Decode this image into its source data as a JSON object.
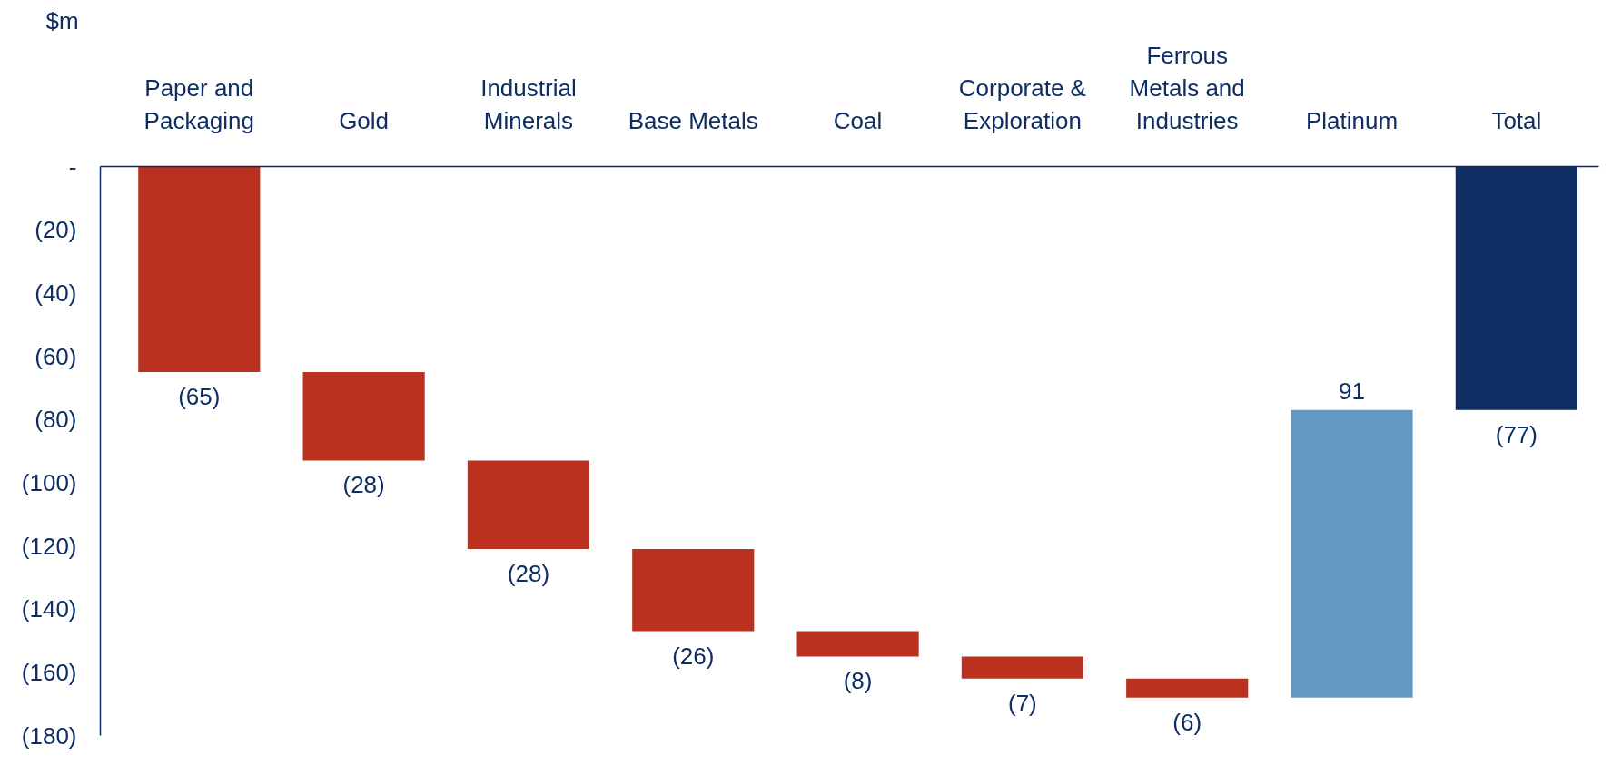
{
  "chart_data": {
    "type": "bar",
    "ylabel": "$m",
    "categories": [
      "Paper and Packaging",
      "Gold",
      "Industrial Minerals",
      "Base Metals",
      "Coal",
      "Corporate & Exploration",
      "Ferrous Metals and Industries",
      "Platinum",
      "Total"
    ],
    "values": [
      -65,
      -28,
      -28,
      -26,
      -8,
      -7,
      -6,
      91,
      -77
    ],
    "base": [
      0,
      -65,
      -93,
      -121,
      -147,
      -155,
      -162,
      -168,
      0
    ],
    "colors": [
      "#bb3120",
      "#bb3120",
      "#bb3120",
      "#bb3120",
      "#bb3120",
      "#bb3120",
      "#bb3120",
      "#6699c2",
      "#0d2d63"
    ],
    "value_labels": [
      "(65)",
      "(28)",
      "(28)",
      "(26)",
      "(8)",
      "(7)",
      "(6)",
      "91",
      "(77)"
    ],
    "ylim": [
      -180,
      0
    ],
    "yticks": [
      {
        "value": 0,
        "label": "-"
      },
      {
        "value": -20,
        "label": "(20)"
      },
      {
        "value": -40,
        "label": "(40)"
      },
      {
        "value": -60,
        "label": "(60)"
      },
      {
        "value": -80,
        "label": "(80)"
      },
      {
        "value": -100,
        "label": "(100)"
      },
      {
        "value": -120,
        "label": "(120)"
      },
      {
        "value": -140,
        "label": "(140)"
      },
      {
        "value": -160,
        "label": "(160)"
      },
      {
        "value": -180,
        "label": "(180)"
      }
    ],
    "grid": false
  }
}
